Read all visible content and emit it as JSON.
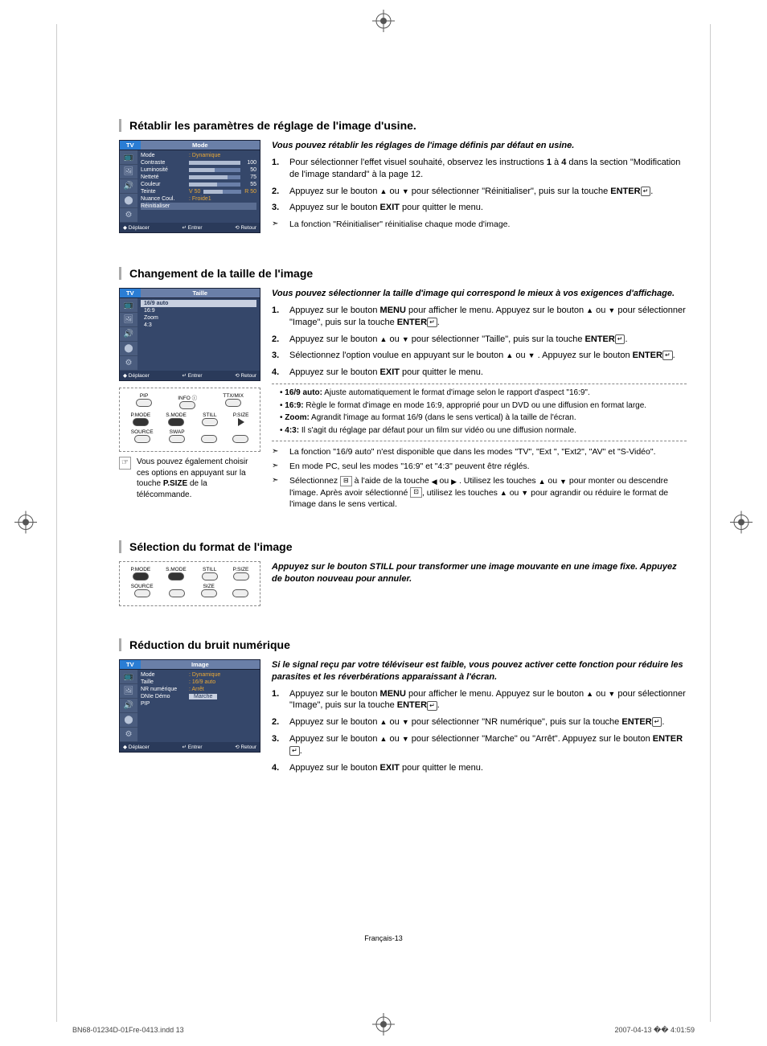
{
  "crop_color": "#555",
  "section1": {
    "title": "Rétablir les paramètres de réglage de l'image d'usine.",
    "intro": "Vous pouvez rétablir les réglages de l'image définis par défaut en usine.",
    "steps": [
      "Pour sélectionner l'effet visuel souhaité, observez les instructions <b>1</b> à <b>4</b> dans la section \"Modification de l'image standard\" à la page 12.",
      "Appuyez sur le bouton <span class='arrow-up'>▲</span> ou <span class='arrow-down'>▼</span> pour sélectionner \"Réinitialiser\", puis sur la touche <b>ENTER</b><span class='enter-icon'>↵</span>.",
      "Appuyez sur le bouton <b>EXIT</b> pour quitter le menu."
    ],
    "note": "La fonction \"Réinitialiser\" réinitialise chaque mode d'image.",
    "osd": {
      "tab": "TV",
      "title": "Mode",
      "rows": [
        {
          "label": "Mode",
          "val": ": Dynamique"
        },
        {
          "label": "Contraste",
          "slider": 100,
          "num": "100"
        },
        {
          "label": "Luminosité",
          "slider": 50,
          "num": "50"
        },
        {
          "label": "Netteté",
          "slider": 75,
          "num": "75"
        },
        {
          "label": "Couleur",
          "slider": 55,
          "num": "55"
        },
        {
          "label": "Teinte",
          "valL": "V 50",
          "valR": "R 50"
        },
        {
          "label": "Nuance Coul.",
          "val": ": Froide1"
        },
        {
          "label": "Réinitialiser",
          "sel": true
        }
      ],
      "footer": [
        "◆ Déplacer",
        "↵ Entrer",
        "⟲ Retour"
      ]
    }
  },
  "section2": {
    "title": "Changement de la taille de l'image",
    "intro": "Vous pouvez sélectionner la taille d'image qui correspond le mieux à vos exigences d'affichage.",
    "steps": [
      "Appuyez sur le bouton <b>MENU</b> pour afficher le menu. Appuyez sur le bouton <span class='arrow-up'>▲</span> ou <span class='arrow-down'>▼</span> pour sélectionner \"Image\", puis sur la touche <b>ENTER</b><span class='enter-icon'>↵</span>.",
      "Appuyez sur le bouton <span class='arrow-up'>▲</span> ou <span class='arrow-down'>▼</span> pour sélectionner \"Taille\", puis sur la touche <b>ENTER</b><span class='enter-icon'>↵</span>.",
      "Sélectionnez l'option voulue en appuyant sur le bouton <span class='arrow-up'>▲</span> ou <span class='arrow-down'>▼</span> . Appuyez sur le bouton <b>ENTER</b><span class='enter-icon'>↵</span>.",
      "Appuyez sur le bouton <b>EXIT</b> pour quitter le menu."
    ],
    "bullets": [
      "<b>16/9 auto:</b> Ajuste automatiquement le format d'image selon le rapport d'aspect \"16:9\".",
      "<b>16:9:</b> Règle le format d'image en mode 16:9, approprié pour un DVD ou une diffusion en format large.",
      "<b>Zoom:</b> Agrandit l'image au format 16/9 (dans le sens vertical) à la taille de l'écran.",
      "<b>4:3:</b> Il s'agit du réglage par défaut pour un film sur vidéo ou une diffusion normale."
    ],
    "notes": [
      "La fonction \"16/9 auto\" n'est disponible que dans les modes \"TV\", \"Ext \", \"Ext2\", \"AV\" et \"S-Vidéo\".",
      "En mode PC, seul les modes \"16:9\" et \"4:3\" peuvent être réglés.",
      "Sélectionnez <span class='mini-icon'>⊟</span> à l'aide de la touche <span class='arrow-left'>◀</span> ou <span class='arrow-right'>▶</span> . Utilisez les touches <span class='arrow-up'>▲</span> ou <span class='arrow-down'>▼</span> pour monter ou descendre l'image. Après avoir sélectionné <span class='mini-icon'>⊡</span>, utilisez les touches <span class='arrow-up'>▲</span> ou <span class='arrow-down'>▼</span> pour agrandir ou réduire le format de l'image dans le sens vertical."
    ],
    "side_note": "Vous pouvez également choisir ces options en appuyant sur la touche <b>P.SIZE</b> de la télécommande.",
    "osd": {
      "tab": "TV",
      "title": "Taille",
      "items": [
        "16/9 auto",
        "16:9",
        "Zoom",
        "4:3"
      ],
      "footer": [
        "◆ Déplacer",
        "↵ Entrer",
        "⟲ Retour"
      ]
    },
    "remote": {
      "row1": [
        "PIP",
        "INFO ⓘ",
        "TTX/MIX"
      ],
      "row2": [
        "P.MODE",
        "S.MODE",
        "STILL",
        "P.SIZE"
      ],
      "row3": [
        "SOURCE",
        "SWAP",
        "",
        ""
      ]
    }
  },
  "section3": {
    "title": "Sélection du format de l'image",
    "intro": "Appuyez sur le bouton STILL pour transformer une image mouvante en une image fixe. Appuyez de bouton nouveau pour annuler.",
    "remote": {
      "row1": [
        "P.MODE",
        "S.MODE",
        "STILL",
        "P.SIZE"
      ],
      "row2": [
        "SOURCE",
        "",
        "SIZE",
        ""
      ]
    }
  },
  "section4": {
    "title": "Réduction du bruit numérique",
    "intro": "Si le signal reçu par votre téléviseur est faible, vous pouvez activer cette fonction pour réduire les parasites et les réverbérations apparaissant à l'écran.",
    "steps": [
      "Appuyez sur le bouton <b>MENU</b> pour afficher le menu. Appuyez sur le bouton <span class='arrow-up'>▲</span> ou <span class='arrow-down'>▼</span> pour sélectionner \"Image\", puis sur la touche <b>ENTER</b><span class='enter-icon'>↵</span>.",
      "Appuyez sur le bouton <span class='arrow-up'>▲</span> ou <span class='arrow-down'>▼</span> pour sélectionner \"NR numérique\", puis sur la touche <b>ENTER</b><span class='enter-icon'>↵</span>.",
      "Appuyez sur le bouton <span class='arrow-up'>▲</span> ou <span class='arrow-down'>▼</span> pour sélectionner \"Marche\" ou \"Arrêt\". Appuyez sur le bouton <b>ENTER</b><span class='enter-icon'>↵</span>.",
      "Appuyez sur le bouton <b>EXIT</b> pour quitter le menu."
    ],
    "osd": {
      "tab": "TV",
      "title": "Image",
      "rows": [
        {
          "label": "Mode",
          "val": ": Dynamique"
        },
        {
          "label": "Taille",
          "val": ": 16/9 auto"
        },
        {
          "label": "NR numérique",
          "val": ": Arrêt",
          "hl": true
        },
        {
          "label": "DNIe Démo",
          "val": ": Marche",
          "hlval": true
        },
        {
          "label": "PIP"
        }
      ],
      "footer": [
        "◆ Déplacer",
        "↵ Entrer",
        "⟲ Retour"
      ]
    }
  },
  "page_number": "Français-13",
  "print_left": "BN68-01234D-01Fre-0413.indd   13",
  "print_right": "2007-04-13   �� 4:01:59"
}
